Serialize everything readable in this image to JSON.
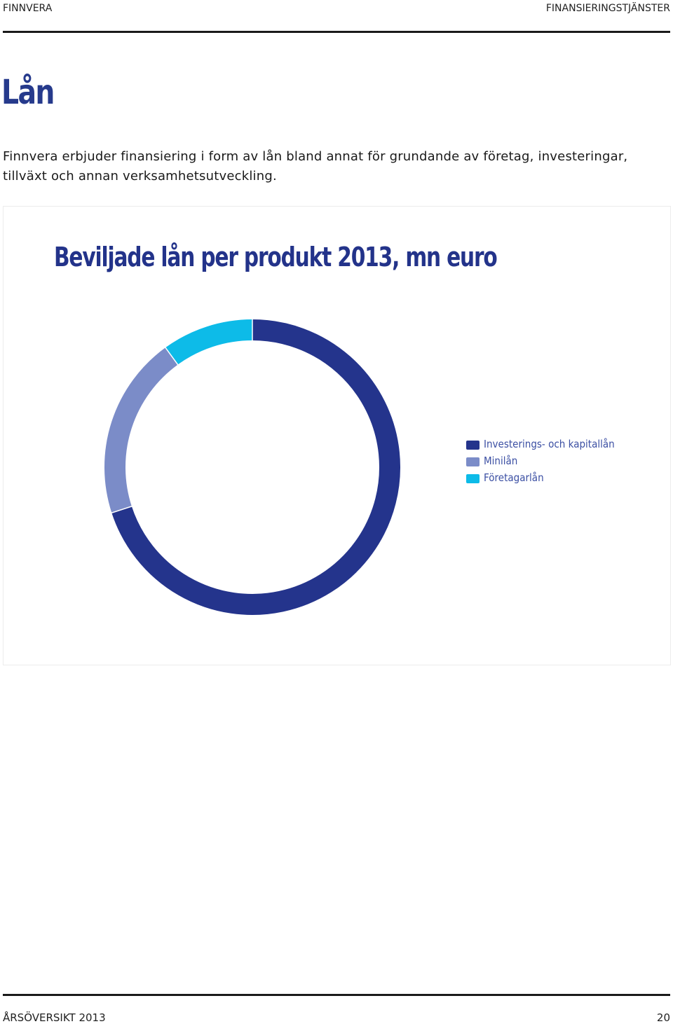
{
  "header": {
    "left": "FINNVERA",
    "right": "FINANSIERINGSTJÄNSTER"
  },
  "title": "Lån",
  "intro": "Finnvera erbjuder finansiering i form av lån bland annat för grundande av företag, investeringar, tillväxt och annan verksamhetsutveckling.",
  "chart_data": {
    "type": "pie",
    "style": "donut",
    "title": "Beviljade lån per produkt 2013, mn euro",
    "categories": [
      "Investerings- och kapitallån",
      "Minilån",
      "Företagarlån"
    ],
    "values": [
      70,
      20,
      10
    ],
    "colors": [
      "#24348c",
      "#7b8cc8",
      "#0dbbe8"
    ],
    "legend_position": "right"
  },
  "footer": {
    "left": "ÅRSÖVERSIKT 2013",
    "page_number": "20"
  }
}
